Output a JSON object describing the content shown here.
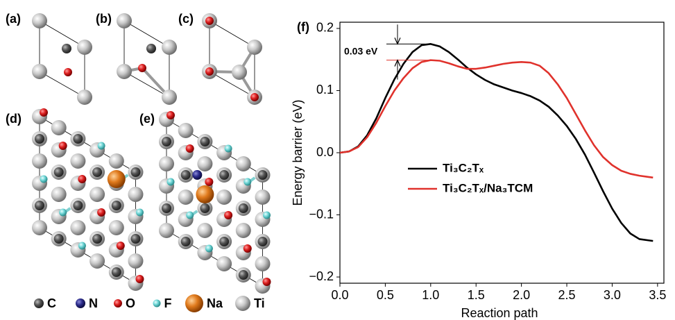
{
  "structures": {
    "panel_labels": [
      "(a)",
      "(b)",
      "(c)",
      "(d)",
      "(e)"
    ],
    "legend": [
      "C",
      "N",
      "O",
      "F",
      "Na",
      "Ti"
    ]
  },
  "chart_data": {
    "type": "line",
    "panel_label": "(f)",
    "xlabel": "Reaction path",
    "ylabel": "Energy barrier (eV)",
    "x": [
      0,
      0.1,
      0.2,
      0.3,
      0.4,
      0.5,
      0.6,
      0.7,
      0.8,
      0.9,
      1.0,
      1.1,
      1.2,
      1.3,
      1.4,
      1.5,
      1.6,
      1.7,
      1.8,
      1.9,
      2.0,
      2.1,
      2.2,
      2.3,
      2.4,
      2.5,
      2.6,
      2.7,
      2.8,
      2.9,
      3.0,
      3.1,
      3.2,
      3.3,
      3.4,
      3.45
    ],
    "series": [
      {
        "name": "Ti₃C₂Tₓ",
        "color": "#000000",
        "values": [
          0,
          0.002,
          0.01,
          0.028,
          0.055,
          0.088,
          0.118,
          0.143,
          0.162,
          0.173,
          0.175,
          0.171,
          0.162,
          0.15,
          0.137,
          0.126,
          0.117,
          0.11,
          0.105,
          0.1,
          0.096,
          0.091,
          0.084,
          0.074,
          0.06,
          0.043,
          0.022,
          -0.003,
          -0.032,
          -0.062,
          -0.09,
          -0.113,
          -0.13,
          -0.139,
          -0.141,
          -0.142
        ]
      },
      {
        "name": "Ti₃C₂Tₓ/Na₃TCM",
        "color": "#e0322c",
        "values": [
          0,
          0.002,
          0.009,
          0.025,
          0.048,
          0.075,
          0.1,
          0.12,
          0.136,
          0.146,
          0.149,
          0.148,
          0.144,
          0.139,
          0.135,
          0.135,
          0.137,
          0.14,
          0.143,
          0.145,
          0.146,
          0.145,
          0.14,
          0.128,
          0.11,
          0.088,
          0.062,
          0.036,
          0.012,
          -0.007,
          -0.02,
          -0.029,
          -0.034,
          -0.037,
          -0.039,
          -0.04
        ]
      }
    ],
    "xlim": [
      0,
      3.57
    ],
    "ylim": [
      -0.21,
      0.21
    ],
    "xticks": [
      {
        "value": 0,
        "label": "0.0"
      },
      0.5,
      {
        "value": 1,
        "label": "1.0"
      },
      1.5,
      {
        "value": 2,
        "label": "2.0"
      },
      2.5,
      {
        "value": 3,
        "label": "3.0"
      },
      3.5
    ],
    "yticks": [
      {
        "value": -0.2,
        "label": "−0.2"
      },
      {
        "value": -0.1,
        "label": "−0.1"
      },
      {
        "value": 0,
        "label": "0.0"
      },
      0.1,
      0.2
    ],
    "annotation": "0.03 eV",
    "legend_position": "center"
  }
}
